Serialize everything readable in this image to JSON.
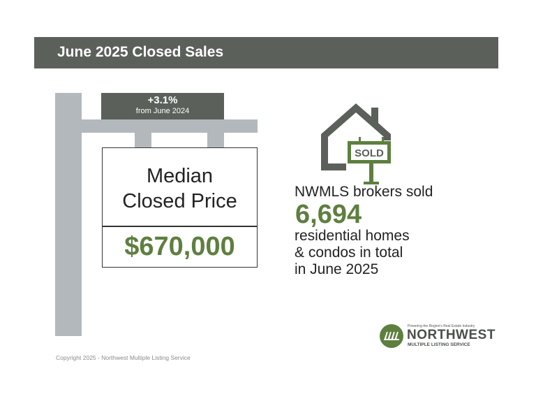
{
  "header": {
    "title": "June 2025 Closed Sales"
  },
  "change_tag": {
    "value": "+3.1%",
    "subtitle": "from June 2024"
  },
  "price_sign": {
    "label_line1": "Median",
    "label_line2": "Closed Price",
    "value": "$670,000"
  },
  "house_icon": {
    "icon": "house-sold-sign-icon",
    "sign_text": "SOLD"
  },
  "stats": {
    "intro": "NWMLS brokers sold",
    "number": "6,694",
    "line1": "residential homes",
    "line2": "& condos in total",
    "line3": "in June 2025"
  },
  "logo": {
    "tagline": "Powering the Region's Real Estate Industry",
    "name": "NORTHWEST",
    "subname": "MULTIPLE LISTING SERVICE"
  },
  "footer": {
    "copyright": "Copyright 2025 - Northwest Multiple Listing Service"
  },
  "colors": {
    "header_bg": "#5b605b",
    "accent_green": "#5e7f3f",
    "post_gray": "#b3b8bc"
  }
}
